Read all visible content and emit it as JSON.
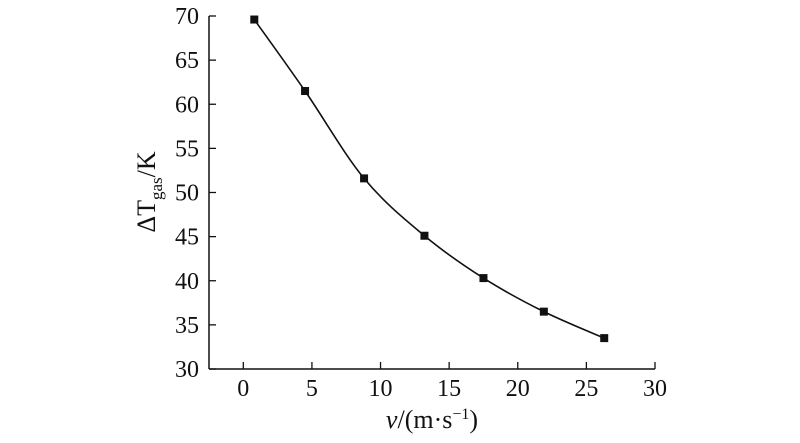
{
  "chart_data": {
    "type": "line",
    "title": "",
    "xlabel": {
      "var": "v",
      "unit_open": "/(m·s",
      "unit_exp": "−1",
      "unit_close": ")"
    },
    "ylabel": {
      "prefix": "ΔT",
      "subscript": "gas",
      "suffix": "/K"
    },
    "xlim": [
      -2.5,
      30
    ],
    "ylim": [
      30,
      70
    ],
    "x_ticks": [
      0,
      5,
      10,
      15,
      20,
      25,
      30
    ],
    "x_tick_labels": [
      "0",
      "5",
      "10",
      "15",
      "20",
      "25",
      "30"
    ],
    "y_ticks": [
      30,
      35,
      40,
      45,
      50,
      55,
      60,
      65,
      70
    ],
    "y_tick_labels": [
      "30",
      "35",
      "40",
      "45",
      "50",
      "55",
      "60",
      "65",
      "70"
    ],
    "series": [
      {
        "marker": "square",
        "color": "#111111",
        "x": [
          0.8,
          4.5,
          8.8,
          13.2,
          17.5,
          21.9,
          26.3
        ],
        "y": [
          69.6,
          61.5,
          51.6,
          45.1,
          40.3,
          36.5,
          33.5
        ]
      }
    ],
    "grid": false,
    "legend": "none"
  }
}
